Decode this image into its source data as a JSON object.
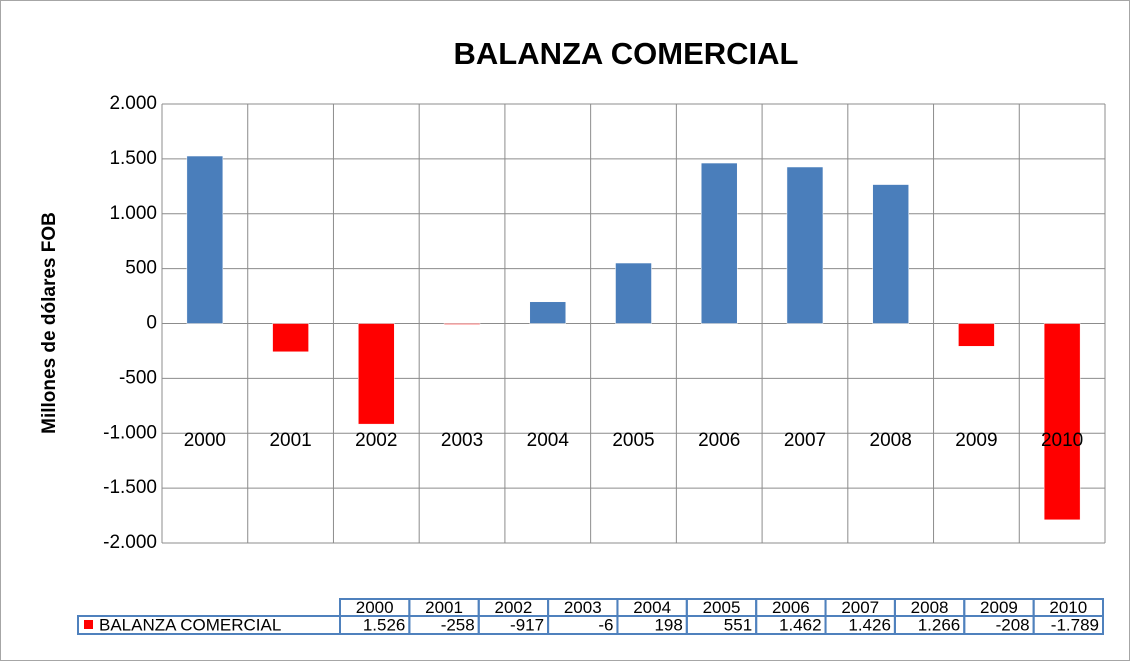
{
  "chart_data": {
    "type": "bar",
    "title": "BALANZA COMERCIAL",
    "y_label": "Millones  de dólares FOB",
    "categories": [
      "2000",
      "2001",
      "2002",
      "2003",
      "2004",
      "2005",
      "2006",
      "2007",
      "2008",
      "2009",
      "2010"
    ],
    "series": [
      {
        "name": "BALANZA COMERCIAL",
        "color": "#ff0000",
        "positive_color": "#4a7ebb",
        "values": [
          1526,
          -258,
          -917,
          -6,
          198,
          551,
          1462,
          1426,
          1266,
          -208,
          -1789
        ],
        "value_labels": [
          "1.526",
          "-258",
          "-917",
          "-6",
          "198",
          "551",
          "1.462",
          "1.426",
          "1.266",
          "-208",
          "-1.789"
        ]
      }
    ],
    "ylim": [
      -2000,
      2000
    ],
    "yticks": [
      {
        "value": -2000,
        "label": "-2.000"
      },
      {
        "value": -1500,
        "label": "-1.500"
      },
      {
        "value": -1000,
        "label": "-1.000"
      },
      -500,
      0,
      500,
      {
        "value": 1000,
        "label": "1.000"
      },
      {
        "value": 1500,
        "label": "1.500"
      },
      {
        "value": 2000,
        "label": "2.000"
      }
    ],
    "grid": true,
    "data_table": true
  }
}
